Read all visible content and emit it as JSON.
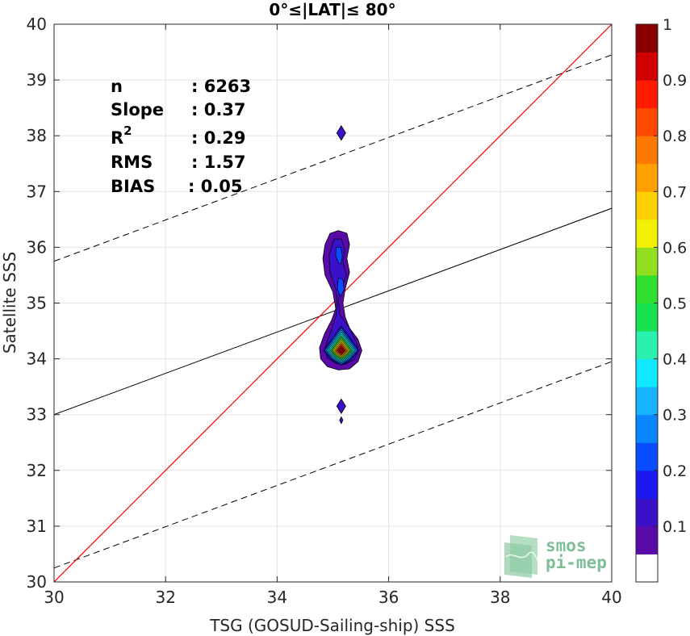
{
  "chart_data": {
    "type": "heatmap",
    "title": "0°≤|LAT|≤ 80°",
    "xlabel": "TSG (GOSUD-Sailing-ship) SSS",
    "ylabel": "Satellite SSS",
    "xlim": [
      30,
      40
    ],
    "ylim": [
      30,
      40
    ],
    "xticks": [
      "30",
      "32",
      "34",
      "36",
      "38",
      "40"
    ],
    "yticks": [
      "30",
      "31",
      "32",
      "33",
      "34",
      "35",
      "36",
      "37",
      "38",
      "39",
      "40"
    ],
    "grid": true,
    "stats": [
      {
        "label": "n",
        "value": ": 6263"
      },
      {
        "label": "Slope",
        "value": ": 0.37"
      },
      {
        "label": "R",
        "sup": "2",
        "value": ": 0.29"
      },
      {
        "label": "RMS",
        "value": ": 1.57"
      },
      {
        "label": "BIAS",
        "value": ": 0.05"
      }
    ],
    "identity_line": {
      "x": [
        30,
        40
      ],
      "y": [
        30,
        40
      ],
      "color": "#ff0000"
    },
    "regression_line": {
      "x": [
        30,
        40
      ],
      "y": [
        33.0,
        36.7
      ],
      "color": "#000000"
    },
    "rms_bounds": [
      {
        "x": [
          30,
          40
        ],
        "y": [
          35.75,
          39.45
        ]
      },
      {
        "x": [
          30,
          40
        ],
        "y": [
          30.25,
          33.95
        ]
      }
    ],
    "density_peak": {
      "x": 35.15,
      "y": 34.15,
      "value": 1.0
    },
    "outliers": [
      {
        "x": 35.15,
        "y": 38.05
      },
      {
        "x": 35.15,
        "y": 33.15
      },
      {
        "x": 35.15,
        "y": 32.9
      }
    ],
    "colorbar": {
      "min": 0,
      "max": 1,
      "ticks": [
        "0.1",
        "0.2",
        "0.3",
        "0.4",
        "0.5",
        "0.6",
        "0.7",
        "0.8",
        "0.9",
        "1"
      ],
      "colors": [
        "#ffffff",
        "#5a0aa8",
        "#3a10c8",
        "#1a1af0",
        "#0a4cff",
        "#0a84ff",
        "#16b4ff",
        "#10e8ff",
        "#2cf0b0",
        "#18e050",
        "#30e030",
        "#90e020",
        "#f0f000",
        "#ffd000",
        "#ffa000",
        "#ff7800",
        "#ff4800",
        "#ff1a00",
        "#d00000",
        "#8a0000"
      ]
    }
  },
  "logo": {
    "line1": "smos",
    "line2": "pi-mep"
  }
}
